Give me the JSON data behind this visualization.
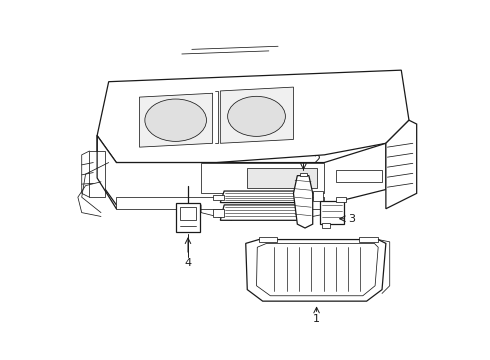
{
  "background_color": "#ffffff",
  "line_color": "#1a1a1a",
  "label_color": "#111111",
  "figsize": [
    4.9,
    3.6
  ],
  "dpi": 100,
  "lw_main": 0.9,
  "lw_thin": 0.55,
  "label_fontsize": 8
}
